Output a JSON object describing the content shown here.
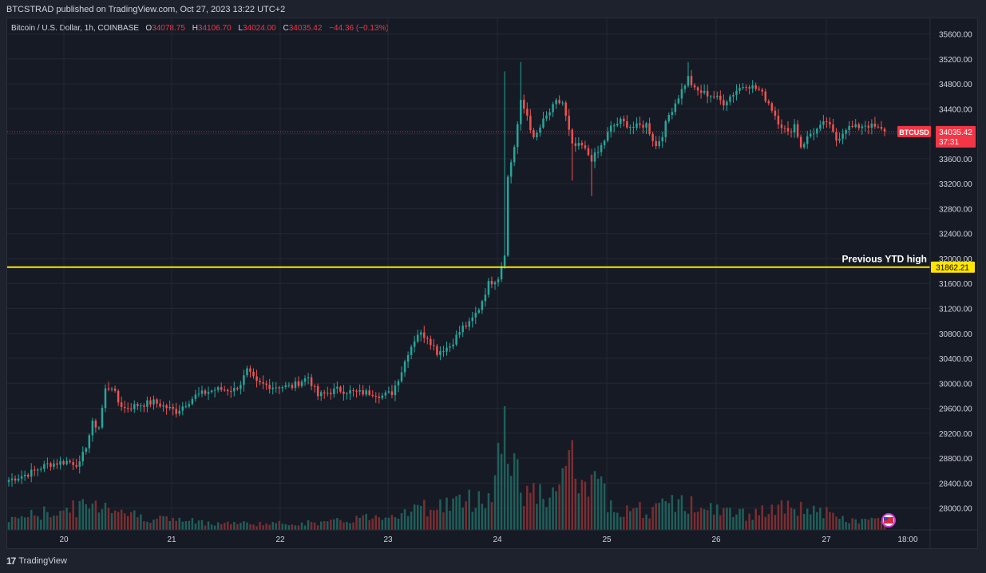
{
  "header": {
    "published_line": "BTCSTRAD published on TradingView.com, Oct 27, 2023 13:22 UTC+2"
  },
  "legend": {
    "symbol": "Bitcoin / U.S. Dollar, 1h, COINBASE",
    "open_label": "O",
    "open": "34078.75",
    "high_label": "H",
    "high": "34106.70",
    "low_label": "L",
    "low": "34024.00",
    "close_label": "C",
    "close": "34035.42",
    "change": "−44.36 (−0.13%)"
  },
  "chart_data": {
    "type": "candlestick",
    "symbol": "BTCUSD",
    "y_ticks": [
      28000,
      28400,
      28800,
      29200,
      29600,
      30000,
      30400,
      30800,
      31200,
      31600,
      32000,
      32400,
      32800,
      33200,
      33600,
      34000,
      34400,
      34800,
      35200,
      35600
    ],
    "y_tick_labels": [
      "28000.00",
      "28400.00",
      "28800.00",
      "29200.00",
      "29600.00",
      "30000.00",
      "30400.00",
      "30800.00",
      "31200.00",
      "31600.00",
      "32000.00",
      "32400.00",
      "32800.00",
      "33200.00",
      "33600.00",
      "34000.00",
      "34400.00",
      "34800.00",
      "35200.00",
      "35600.00"
    ],
    "x_ticks": [
      "20",
      "21",
      "22",
      "23",
      "24",
      "25",
      "26",
      "27",
      "18:00"
    ],
    "ylim": [
      27650,
      35850
    ],
    "last_price": {
      "label": "BTCUSD",
      "value": "34035.42",
      "countdown": "37:31"
    },
    "horizontal_line": {
      "label": "Previous YTD high",
      "value": 31862.21,
      "value_label": "31862.21"
    },
    "anchors": [
      [
        0,
        28450
      ],
      [
        6,
        28550
      ],
      [
        12,
        28700
      ],
      [
        18,
        28750
      ],
      [
        22,
        28700
      ],
      [
        24,
        29000
      ],
      [
        26,
        29350
      ],
      [
        28,
        29300
      ],
      [
        30,
        29900
      ],
      [
        32,
        29950
      ],
      [
        34,
        29700
      ],
      [
        36,
        29600
      ],
      [
        40,
        29650
      ],
      [
        45,
        29700
      ],
      [
        52,
        29550
      ],
      [
        58,
        29800
      ],
      [
        64,
        29900
      ],
      [
        70,
        29900
      ],
      [
        72,
        30000
      ],
      [
        74,
        30200
      ],
      [
        77,
        30000
      ],
      [
        82,
        29950
      ],
      [
        88,
        29950
      ],
      [
        93,
        30100
      ],
      [
        96,
        29800
      ],
      [
        102,
        29900
      ],
      [
        108,
        29850
      ],
      [
        113,
        29850
      ],
      [
        116,
        29800
      ],
      [
        119,
        29850
      ],
      [
        122,
        30200
      ],
      [
        124,
        30500
      ],
      [
        127,
        30800
      ],
      [
        130,
        30750
      ],
      [
        133,
        30500
      ],
      [
        137,
        30600
      ],
      [
        141,
        30900
      ],
      [
        143,
        30950
      ],
      [
        146,
        31200
      ],
      [
        149,
        31600
      ],
      [
        152,
        31700
      ],
      [
        154,
        32100
      ],
      [
        155,
        33300
      ],
      [
        157,
        33800
      ],
      [
        159,
        34500
      ],
      [
        161,
        34300
      ],
      [
        163,
        33900
      ],
      [
        166,
        34200
      ],
      [
        170,
        34500
      ],
      [
        172,
        34500
      ],
      [
        175,
        33800
      ],
      [
        178,
        33800
      ],
      [
        181,
        33600
      ],
      [
        183,
        33700
      ],
      [
        187,
        34100
      ],
      [
        190,
        34200
      ],
      [
        194,
        34100
      ],
      [
        198,
        34150
      ],
      [
        201,
        33800
      ],
      [
        203,
        34000
      ],
      [
        205,
        34300
      ],
      [
        208,
        34600
      ],
      [
        211,
        34900
      ],
      [
        213,
        34700
      ],
      [
        216,
        34650
      ],
      [
        219,
        34600
      ],
      [
        222,
        34500
      ],
      [
        226,
        34700
      ],
      [
        229,
        34800
      ],
      [
        233,
        34700
      ],
      [
        236,
        34500
      ],
      [
        239,
        34200
      ],
      [
        242,
        34000
      ],
      [
        244,
        34150
      ],
      [
        246,
        33800
      ],
      [
        249,
        34000
      ],
      [
        252,
        34100
      ],
      [
        254,
        34200
      ],
      [
        257,
        33900
      ],
      [
        260,
        34100
      ],
      [
        263,
        34100
      ],
      [
        266,
        34150
      ],
      [
        269,
        34100
      ],
      [
        272,
        34035
      ]
    ],
    "volume_anchors": [
      [
        0,
        15
      ],
      [
        20,
        28
      ],
      [
        30,
        35
      ],
      [
        40,
        18
      ],
      [
        60,
        10
      ],
      [
        80,
        8
      ],
      [
        100,
        10
      ],
      [
        120,
        22
      ],
      [
        130,
        30
      ],
      [
        145,
        40
      ],
      [
        150,
        45
      ],
      [
        154,
        155
      ],
      [
        156,
        75
      ],
      [
        158,
        95
      ],
      [
        160,
        50
      ],
      [
        170,
        40
      ],
      [
        174,
        100
      ],
      [
        178,
        50
      ],
      [
        182,
        60
      ],
      [
        188,
        30
      ],
      [
        200,
        25
      ],
      [
        208,
        38
      ],
      [
        215,
        28
      ],
      [
        230,
        20
      ],
      [
        240,
        28
      ],
      [
        250,
        28
      ],
      [
        260,
        12
      ],
      [
        272,
        14
      ]
    ]
  },
  "footer": {
    "brand": "TradingView",
    "logo_text": "17"
  },
  "colors": {
    "up": "#26a69a",
    "down": "#ef5350",
    "vol_up": "#1f5f5a",
    "vol_down": "#7a2e31",
    "ytd_line": "#ffe500",
    "price_badge": "#f23645",
    "grid": "#242833",
    "axis_text": "#d1d4dc"
  }
}
